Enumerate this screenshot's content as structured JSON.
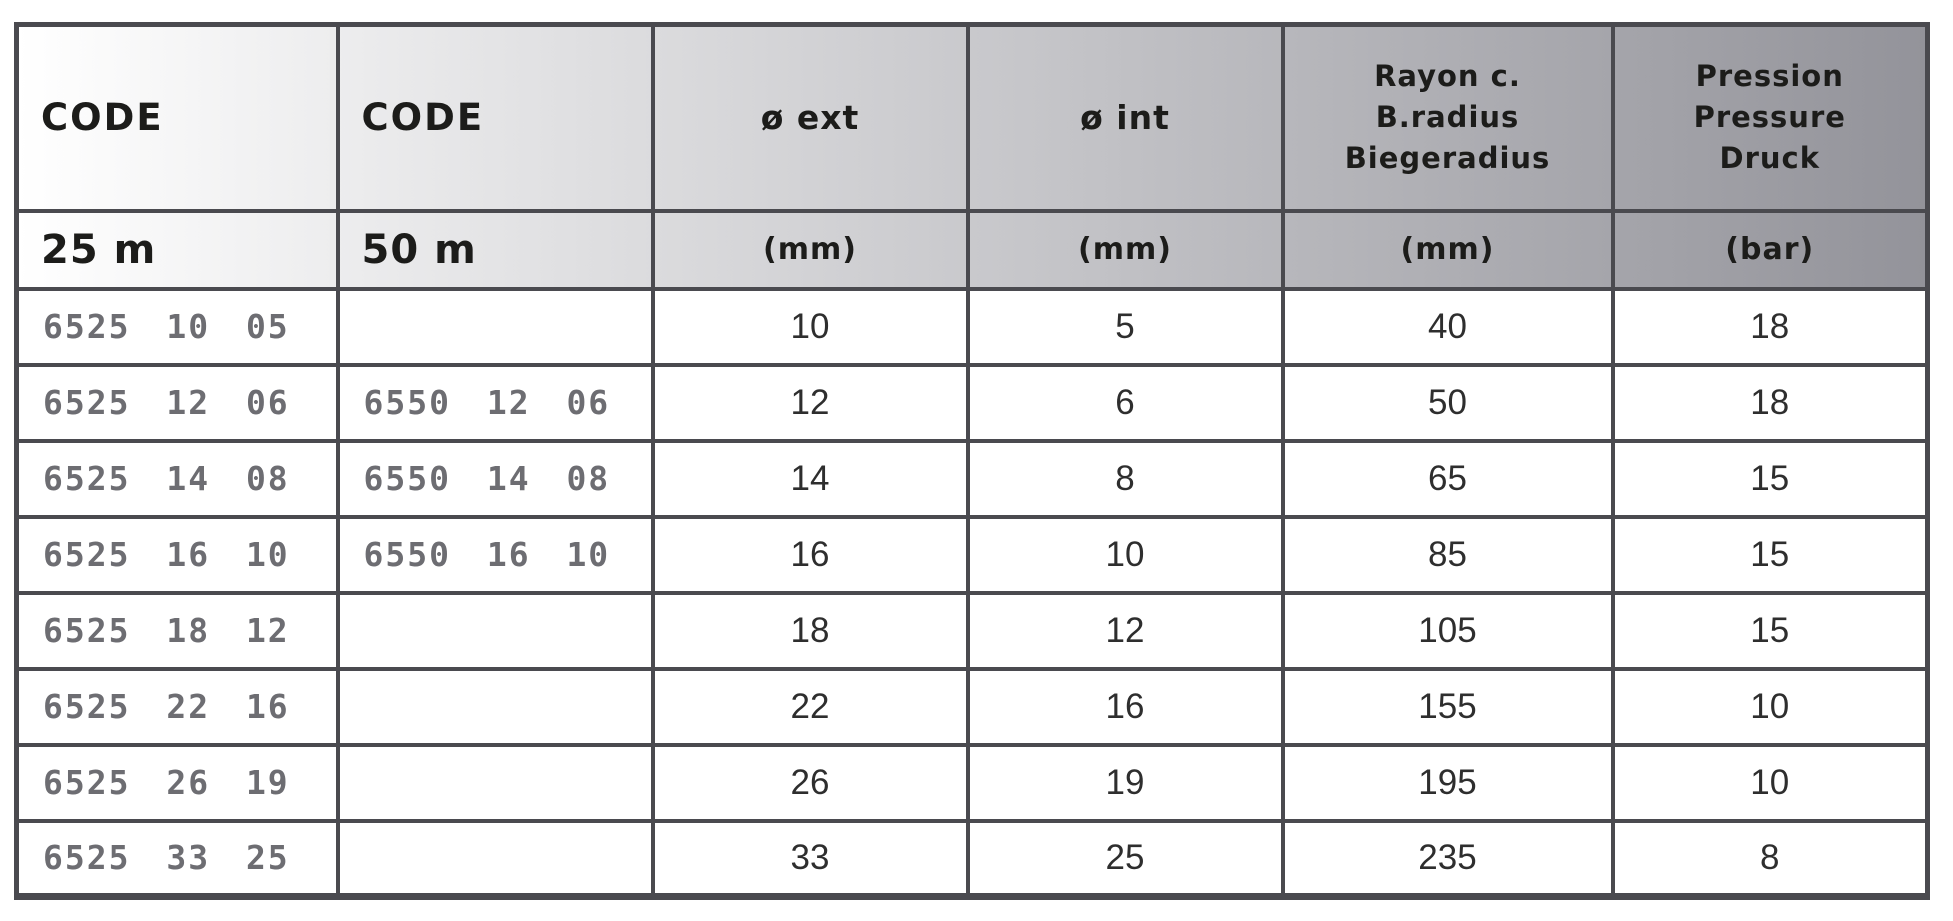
{
  "colors": {
    "border": "#4a4a4f",
    "header_text": "#1c1c1a",
    "code_text": "#6d6d72",
    "value_text": "#2e2e2e",
    "header_gradient_start": "#ffffff",
    "header_gradient_end": "#93939a",
    "row_background": "#ffffff"
  },
  "table": {
    "columns": [
      {
        "id": "code-25m",
        "header": "CODE",
        "sub": "25 m"
      },
      {
        "id": "code-50m",
        "header": "CODE",
        "sub": "50 m"
      },
      {
        "id": "diam-ext",
        "header": "ø ext",
        "sub": "(mm)"
      },
      {
        "id": "diam-int",
        "header": "ø int",
        "sub": "(mm)"
      },
      {
        "id": "bend-radius",
        "header": "Rayon c.\nB.radius\nBiegeradius",
        "sub": "(mm)"
      },
      {
        "id": "pressure",
        "header": "Pression\nPressure\nDruck",
        "sub": "(bar)"
      }
    ],
    "rows": [
      [
        "6525 10 05",
        "",
        "10",
        "5",
        "40",
        "18"
      ],
      [
        "6525 12 06",
        "6550 12 06",
        "12",
        "6",
        "50",
        "18"
      ],
      [
        "6525 14 08",
        "6550 14 08",
        "14",
        "8",
        "65",
        "15"
      ],
      [
        "6525 16 10",
        "6550 16 10",
        "16",
        "10",
        "85",
        "15"
      ],
      [
        "6525 18 12",
        "",
        "18",
        "12",
        "105",
        "15"
      ],
      [
        "6525 22 16",
        "",
        "22",
        "16",
        "155",
        "10"
      ],
      [
        "6525 26 19",
        "",
        "26",
        "19",
        "195",
        "10"
      ],
      [
        "6525 33 25",
        "",
        "33",
        "25",
        "235",
        "8"
      ]
    ]
  }
}
